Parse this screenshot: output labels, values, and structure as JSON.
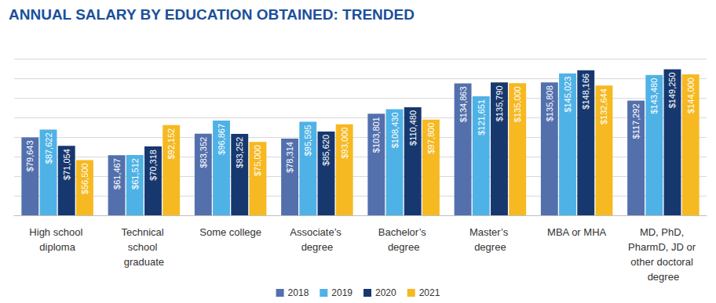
{
  "chart_data": {
    "type": "bar",
    "title": "ANNUAL SALARY BY EDUCATION OBTAINED: TRENDED",
    "categories": [
      "High school diploma",
      "Technical school graduate",
      "Some college",
      "Associate’s degree",
      "Bachelor’s degree",
      "Master’s degree",
      "MBA or MHA",
      "MD, PhD, PharmD, JD or other doctoral degree"
    ],
    "series": [
      {
        "name": "2018",
        "color": "#5370ad",
        "values": [
          79643,
          61467,
          83352,
          78314,
          103801,
          134863,
          135808,
          117292
        ],
        "value_labels": [
          "$79,643",
          "$61,467",
          "$83,352",
          "$78,314",
          "$103,801",
          "$134,863",
          "$135,808",
          "$117,292"
        ]
      },
      {
        "name": "2019",
        "color": "#4fb2e6",
        "values": [
          87622,
          61512,
          96867,
          95595,
          108430,
          121651,
          145023,
          143480
        ],
        "value_labels": [
          "$87,622",
          "$61,512",
          "$96,867",
          "$95,595",
          "$108,430",
          "$121,651",
          "$145,023",
          "$143,480"
        ]
      },
      {
        "name": "2020",
        "color": "#17386f",
        "values": [
          71054,
          70318,
          83252,
          85620,
          110480,
          135790,
          148166,
          149250
        ],
        "value_labels": [
          "$71,054",
          "$70,318",
          "$83,252",
          "$85,620",
          "$110,480",
          "$135,790",
          "$148,166",
          "$149,250"
        ]
      },
      {
        "name": "2021",
        "color": "#f6b921",
        "values": [
          56500,
          92152,
          75000,
          93000,
          97800,
          135000,
          132644,
          144000
        ],
        "value_labels": [
          "$56,500",
          "$92,152",
          "$75,000",
          "$93,000",
          "$97,800",
          "$135,000",
          "$132,644",
          "$144,000"
        ]
      }
    ],
    "ylim": [
      0,
      160000
    ],
    "yticks": [
      0,
      20000,
      40000,
      60000,
      80000,
      100000,
      120000,
      140000,
      160000
    ],
    "grid": true,
    "legend": "bottom",
    "data_labels": true,
    "tick_labels": "x"
  }
}
